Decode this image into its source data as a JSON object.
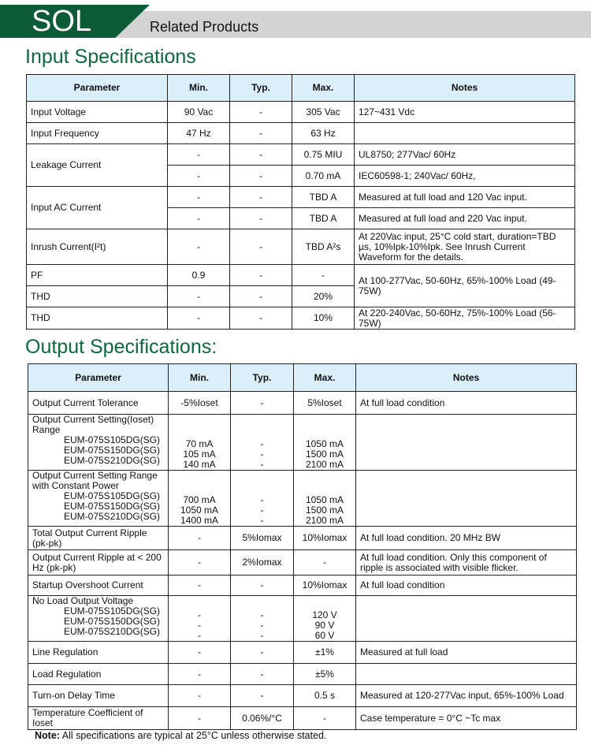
{
  "header": {
    "brand": "SOL",
    "related": "Related Products",
    "brand_color": "#0b5c37"
  },
  "input": {
    "title": "Input Specifications",
    "columns": [
      "Parameter",
      "Min.",
      "Typ.",
      "Max.",
      "Notes"
    ],
    "groups": [
      {
        "rows": [
          {
            "parameter": "Input Voltage",
            "min": "90 Vac",
            "typ": "-",
            "max": "305 Vac",
            "notes": "127~431 Vdc"
          }
        ]
      },
      {
        "rows": [
          {
            "parameter": "Input Frequency",
            "min": "47 Hz",
            "typ": "-",
            "max": "63 Hz",
            "notes": ""
          }
        ]
      },
      {
        "parameter": "Leakage Current",
        "rows": [
          {
            "min": "-",
            "typ": "-",
            "max": "0.75 MIU",
            "notes": "UL8750; 277Vac/ 60Hz"
          },
          {
            "min": "-",
            "typ": "-",
            "max": "0.70 mA",
            "notes": "IEC60598-1; 240Vac/ 60Hz,"
          }
        ]
      },
      {
        "parameter": "Input AC Current",
        "rows": [
          {
            "min": "-",
            "typ": "-",
            "max": "TBD A",
            "notes": "Measured at full load and 120 Vac input."
          },
          {
            "min": "-",
            "typ": "-",
            "max": "TBD A",
            "notes": "Measured at full load and 220 Vac input."
          }
        ]
      },
      {
        "rows": [
          {
            "parameter": "Inrush Current(I²t)",
            "min": "-",
            "typ": "-",
            "max": "TBD A²s",
            "notes": "At 220Vac input, 25°C cold start, duration=TBD µs, 10%Ipk-10%Ipk. See Inrush Current Waveform for the details."
          }
        ]
      },
      {
        "shared_notes": "At 100-277Vac, 50-60Hz,  65%-100% Load (49-75W)",
        "rows": [
          {
            "parameter": "PF",
            "min": "0.9",
            "typ": "-",
            "max": "-"
          },
          {
            "parameter": "THD",
            "min": "-",
            "typ": "-",
            "max": "20%"
          }
        ]
      },
      {
        "rows": [
          {
            "parameter": "THD",
            "min": "-",
            "typ": "-",
            "max": "10%",
            "notes": "At 220-240Vac, 50-60Hz, 75%-100% Load (56-75W)"
          }
        ]
      }
    ]
  },
  "output": {
    "title": "Output Specifications:",
    "columns": [
      "Parameter",
      "Min.",
      "Typ.",
      "Max.",
      "Notes"
    ],
    "groups": [
      {
        "rows": [
          {
            "parameter": "Output Current Tolerance",
            "min": "-5%Ioset",
            "typ": "-",
            "max": "5%Ioset",
            "notes": "At full load condition"
          }
        ]
      },
      {
        "rows": [
          {
            "parameter": "Output Current Setting(Ioset) Range",
            "models": [
              "EUM-075S105DG(SG)",
              "EUM-075S150DG(SG)",
              "EUM-075S210DG(SG)"
            ],
            "min": [
              "70 mA",
              "105 mA",
              "140 mA"
            ],
            "typ": [
              "-",
              "-",
              "-"
            ],
            "max": [
              "1050 mA",
              "1500 mA",
              "2100 mA"
            ],
            "notes": ""
          }
        ]
      },
      {
        "rows": [
          {
            "parameter": "Output Current Setting Range with Constant Power",
            "models": [
              "EUM-075S105DG(SG)",
              "EUM-075S150DG(SG)",
              "EUM-075S210DG(SG)"
            ],
            "min": [
              "700 mA",
              "1050 mA",
              "1400 mA"
            ],
            "typ": [
              "-",
              "-",
              "-"
            ],
            "max": [
              "1050 mA",
              "1500 mA",
              "2100 mA"
            ],
            "notes": ""
          }
        ]
      },
      {
        "rows": [
          {
            "parameter": "Total Output Current Ripple (pk-pk)",
            "min": "-",
            "typ": "5%Iomax",
            "max": "10%Iomax",
            "notes": "At full load condition. 20 MHz BW"
          }
        ]
      },
      {
        "rows": [
          {
            "parameter": "Output Current Ripple at < 200 Hz (pk-pk)",
            "min": "-",
            "typ": "2%Iomax",
            "max": "-",
            "notes": "At full load condition. Only this component of ripple is associated with visible flicker."
          }
        ]
      },
      {
        "rows": [
          {
            "parameter": "Startup Overshoot Current",
            "min": "-",
            "typ": "-",
            "max": "10%Iomax",
            "notes": "At full load condition"
          }
        ]
      },
      {
        "rows": [
          {
            "parameter": "No Load Output Voltage",
            "models": [
              "EUM-075S105DG(SG)",
              "EUM-075S150DG(SG)",
              "EUM-075S210DG(SG)"
            ],
            "min": [
              "-",
              "-",
              "-"
            ],
            "typ": [
              "-",
              "-",
              "-"
            ],
            "max": [
              "120 V",
              "90 V",
              "60 V"
            ],
            "notes": ""
          }
        ]
      },
      {
        "rows": [
          {
            "parameter": "Line Regulation",
            "min": "-",
            "typ": "-",
            "max": "±1%",
            "notes": "Measured at full load"
          }
        ]
      },
      {
        "rows": [
          {
            "parameter": "Load Regulation",
            "min": "-",
            "typ": "-",
            "max": "±5%",
            "notes": ""
          }
        ]
      },
      {
        "rows": [
          {
            "parameter": "Turn-on Delay Time",
            "min": "-",
            "typ": "-",
            "max": "0.5 s",
            "notes": "Measured at 120-277Vac input, 65%-100% Load"
          }
        ]
      },
      {
        "rows": [
          {
            "parameter": "Temperature Coefficient of Ioset",
            "min": "-",
            "typ": "0.06%/°C",
            "max": "-",
            "notes": "Case temperature = 0°C ~Tc max"
          }
        ]
      }
    ]
  },
  "footnote": {
    "label": "Note:",
    "text": "All specifications are typical at 25°C unless otherwise stated."
  }
}
